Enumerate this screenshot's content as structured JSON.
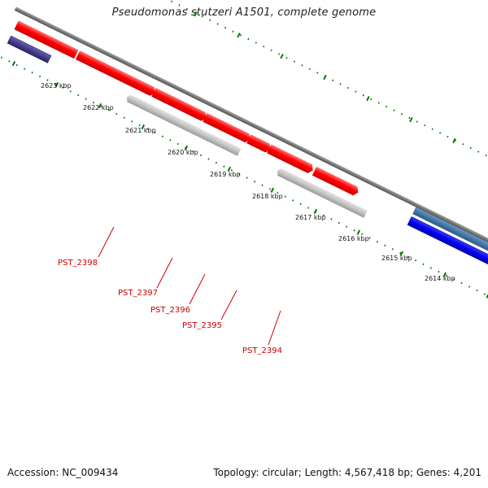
{
  "title": "Pseudomonas stutzeri A1501, complete genome",
  "footer": {
    "accession": "Accession: NC_009434",
    "summary": "Topology: circular; Length: 4,567,418 bp; Genes: 4,201"
  },
  "colors": {
    "forward_gene": "#ff0000",
    "reverse_gene": "#c0c0c0",
    "blue_feature": "#0000ee",
    "steelblue_feature": "#4a7fb0",
    "navy_feature": "#443c8c",
    "backbone": "#777777",
    "tick": "#007700",
    "label": "#cc0000"
  },
  "scale_labels": [
    "2623 kbp",
    "2622 kbp",
    "2621 kbp",
    "2620 kbp",
    "2619 kbp",
    "2618 kbp",
    "2617 kbp",
    "2616 kbp",
    "2615 kbp",
    "2614 kbp"
  ],
  "gene_labels": [
    "PST_2398",
    "PST_2397",
    "PST_2396",
    "PST_2395",
    "PST_2394"
  ]
}
